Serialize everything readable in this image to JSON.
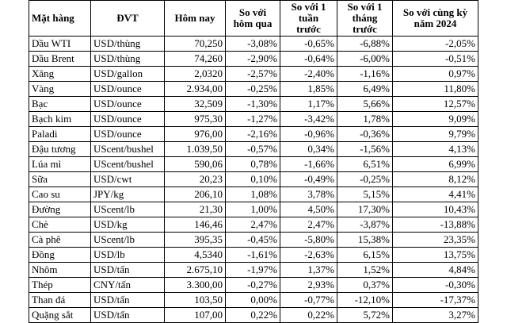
{
  "headers": {
    "commodity": "Mặt hàng",
    "unit": "ĐVT",
    "today": "Hôm nay",
    "vs_yesterday": "So với hôm qua",
    "vs_week": "So với 1 tuần trước",
    "vs_month": "So với 1 tháng trước",
    "vs_year": "So với cùng kỳ năm 2024"
  },
  "rows": [
    {
      "name": "Dầu WTI",
      "unit": "USD/thùng",
      "today": "70,250",
      "day": "-3,08%",
      "week": "-0,65%",
      "month": "-6,88%",
      "year": "-2,05%"
    },
    {
      "name": "Dầu Brent",
      "unit": "USD/thùng",
      "today": "74,260",
      "day": "-2,90%",
      "week": "-0,64%",
      "month": "-6,00%",
      "year": "-0,51%"
    },
    {
      "name": "Xăng",
      "unit": "USD/gallon",
      "today": "2,0320",
      "day": "-2,57%",
      "week": "-2,40%",
      "month": "-1,16%",
      "year": "0,97%"
    },
    {
      "name": "Vàng",
      "unit": "USD/ounce",
      "today": "2.934,00",
      "day": "-0,25%",
      "week": "1,85%",
      "month": "6,49%",
      "year": "11,80%"
    },
    {
      "name": "Bạc",
      "unit": "USD/ounce",
      "today": "32,509",
      "day": "-1,30%",
      "week": "1,17%",
      "month": "5,66%",
      "year": "12,57%"
    },
    {
      "name": "Bạch kim",
      "unit": "USD/ounce",
      "today": "975,30",
      "day": "-1,27%",
      "week": "-3,42%",
      "month": "1,78%",
      "year": "9,09%"
    },
    {
      "name": "Paladi",
      "unit": "USD/ounce",
      "today": "976,00",
      "day": "-2,16%",
      "week": "-0,96%",
      "month": "-0,36%",
      "year": "9,79%"
    },
    {
      "name": "Đậu tương",
      "unit": "UScent/bushel",
      "today": "1.039,50",
      "day": "-0,57%",
      "week": "0,34%",
      "month": "-1,56%",
      "year": "4,13%"
    },
    {
      "name": "Lúa mì",
      "unit": "UScent/bushel",
      "today": "590,06",
      "day": "0,78%",
      "week": "-1,66%",
      "month": "6,51%",
      "year": "6,99%"
    },
    {
      "name": "Sữa",
      "unit": "USD/cwt",
      "today": "20,23",
      "day": "0,10%",
      "week": "-0,49%",
      "month": "-0,25%",
      "year": "8,12%"
    },
    {
      "name": "Cao su",
      "unit": "JPY/kg",
      "today": "206,10",
      "day": "1,08%",
      "week": "3,78%",
      "month": "5,15%",
      "year": "4,41%"
    },
    {
      "name": "Đường",
      "unit": "UScent/lb",
      "today": "21,30",
      "day": "1,00%",
      "week": "4,50%",
      "month": "17,30%",
      "year": "10,43%"
    },
    {
      "name": "Chè",
      "unit": "USD/kg",
      "today": "146,46",
      "day": "2,47%",
      "week": "2,47%",
      "month": "-3,87%",
      "year": "-13,88%"
    },
    {
      "name": "Cà phê",
      "unit": "UScent/lb",
      "today": "395,35",
      "day": "-0,45%",
      "week": "-5,80%",
      "month": "15,38%",
      "year": "23,35%"
    },
    {
      "name": "Đồng",
      "unit": "USD/lb",
      "today": "4,5340",
      "day": "-1,61%",
      "week": "-2,63%",
      "month": "6,15%",
      "year": "13,75%"
    },
    {
      "name": "Nhôm",
      "unit": "USD/tấn",
      "today": "2.675,10",
      "day": "-1,97%",
      "week": "1,37%",
      "month": "1,52%",
      "year": "4,84%"
    },
    {
      "name": "Thép",
      "unit": "CNY/tấn",
      "today": "3.300,00",
      "day": "-0,27%",
      "week": "2,93%",
      "month": "0,37%",
      "year": "-0,30%"
    },
    {
      "name": "Than đá",
      "unit": "USD/tấn",
      "today": "103,50",
      "day": "0,00%",
      "week": "-0,77%",
      "month": "-12,10%",
      "year": "-17,37%"
    },
    {
      "name": "Quặng sắt",
      "unit": "USD/tấn",
      "today": "107,00",
      "day": "0,22%",
      "week": "0,22%",
      "month": "5,72%",
      "year": "3,27%"
    }
  ]
}
